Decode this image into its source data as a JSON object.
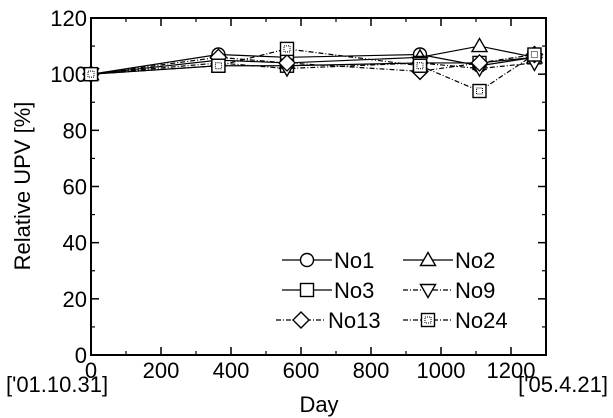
{
  "chart_data": {
    "type": "line",
    "title": "",
    "xlabel": "Day",
    "ylabel": "Relative UPV [%]",
    "xlim": [
      0,
      1300
    ],
    "ylim": [
      0,
      120
    ],
    "xticks": [
      0,
      200,
      400,
      600,
      800,
      1000,
      1200
    ],
    "yticks": [
      0,
      20,
      40,
      60,
      80,
      100,
      120
    ],
    "x_annotations": {
      "start": "['01.10.31]",
      "end": "['05.4.21]"
    },
    "grid": false,
    "legend_position": "bottom-right",
    "series": [
      {
        "name": "No1",
        "marker": "circle",
        "line": "solid",
        "x": [
          0,
          364,
          560,
          940,
          1110,
          1267
        ],
        "y": [
          100,
          107,
          106,
          107,
          103,
          106
        ]
      },
      {
        "name": "No2",
        "marker": "triangle-up",
        "line": "solid",
        "x": [
          0,
          364,
          560,
          940,
          1110,
          1267
        ],
        "y": [
          100,
          105,
          104,
          106,
          110,
          106
        ]
      },
      {
        "name": "No3",
        "marker": "square",
        "line": "solid",
        "x": [
          0,
          364,
          560,
          940,
          1110,
          1267
        ],
        "y": [
          100,
          103,
          103,
          104,
          104,
          106
        ]
      },
      {
        "name": "No9",
        "marker": "triangle-down",
        "line": "dashdot",
        "x": [
          0,
          364,
          560,
          940,
          1110,
          1267
        ],
        "y": [
          100,
          104,
          102,
          104,
          102,
          104
        ]
      },
      {
        "name": "No13",
        "marker": "diamond",
        "line": "dashdot",
        "x": [
          0,
          364,
          560,
          940,
          1110,
          1267
        ],
        "y": [
          100,
          106,
          104,
          101,
          104,
          107
        ]
      },
      {
        "name": "No24",
        "marker": "dotted-square",
        "line": "dashdot",
        "x": [
          0,
          364,
          560,
          940,
          1110,
          1267
        ],
        "y": [
          100,
          103,
          109,
          103,
          94,
          107
        ]
      }
    ]
  }
}
